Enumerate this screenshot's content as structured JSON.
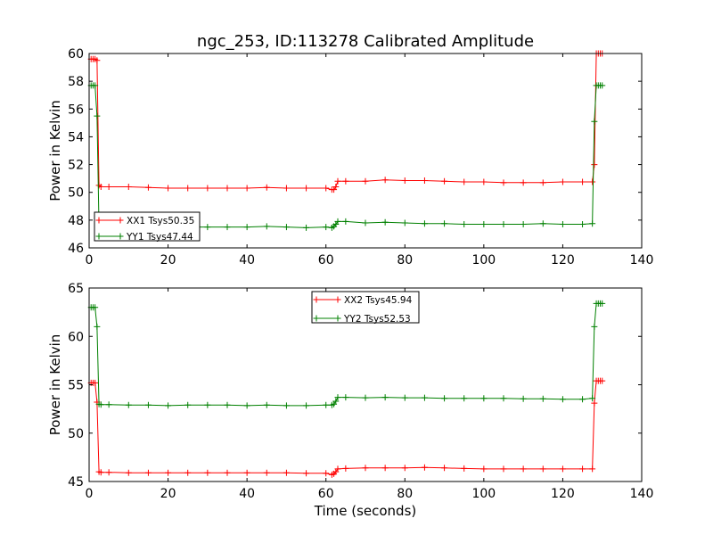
{
  "figure": {
    "title": "ngc_253, ID:113278 Calibrated Amplitude"
  },
  "chart_data": [
    {
      "type": "line",
      "title": "ngc_253, ID:113278 Calibrated Amplitude",
      "xlabel": "",
      "ylabel": "Power in Kelvin",
      "xlim": [
        0,
        140
      ],
      "ylim": [
        46,
        60
      ],
      "xticks": [
        "0",
        "20",
        "40",
        "60",
        "80",
        "100",
        "120",
        "140"
      ],
      "yticks": [
        "46",
        "48",
        "50",
        "52",
        "54",
        "56",
        "58",
        "60"
      ],
      "legend_position": "lower-left",
      "grid": false,
      "series": [
        {
          "name": "XX1 Tsys50.35",
          "color": "#ff0000",
          "marker": "+",
          "x": [
            0.5,
            1,
            1.5,
            2,
            2.5,
            3,
            5,
            10,
            15,
            20,
            25,
            30,
            35,
            40,
            45,
            50,
            55,
            60,
            61.5,
            62,
            62.5,
            63,
            65,
            70,
            75,
            80,
            85,
            90,
            95,
            100,
            105,
            110,
            115,
            120,
            125,
            127.5,
            128,
            128.5,
            129,
            129.5,
            130
          ],
          "y": [
            59.6,
            59.6,
            59.6,
            59.5,
            50.5,
            50.4,
            50.4,
            50.4,
            50.35,
            50.3,
            50.3,
            50.3,
            50.3,
            50.3,
            50.35,
            50.3,
            50.3,
            50.3,
            50.2,
            50.2,
            50.4,
            50.8,
            50.8,
            50.8,
            50.9,
            50.85,
            50.85,
            50.8,
            50.75,
            50.75,
            50.7,
            50.7,
            50.7,
            50.75,
            50.75,
            50.75,
            52,
            60,
            60,
            60,
            60
          ]
        },
        {
          "name": "YY1 Tsys47.44",
          "color": "#008000",
          "marker": "+",
          "x": [
            0.5,
            1,
            1.5,
            2,
            2.5,
            3,
            5,
            10,
            15,
            20,
            25,
            30,
            35,
            40,
            45,
            50,
            55,
            60,
            61.5,
            62,
            62.5,
            63,
            65,
            70,
            75,
            80,
            85,
            90,
            95,
            100,
            105,
            110,
            115,
            120,
            125,
            127.5,
            128,
            128.5,
            129,
            129.5,
            130
          ],
          "y": [
            57.7,
            57.7,
            57.7,
            55.5,
            47.6,
            47.5,
            47.5,
            47.5,
            47.5,
            47.5,
            47.5,
            47.5,
            47.5,
            47.5,
            47.55,
            47.5,
            47.45,
            47.5,
            47.45,
            47.55,
            47.7,
            47.9,
            47.9,
            47.8,
            47.85,
            47.8,
            47.75,
            47.75,
            47.7,
            47.7,
            47.7,
            47.7,
            47.75,
            47.7,
            47.7,
            47.75,
            55.1,
            57.7,
            57.7,
            57.7,
            57.7
          ]
        }
      ]
    },
    {
      "type": "line",
      "title": "",
      "xlabel": "Time (seconds)",
      "ylabel": "Power in Kelvin",
      "xlim": [
        0,
        140
      ],
      "ylim": [
        45,
        65
      ],
      "xticks": [
        "0",
        "20",
        "40",
        "60",
        "80",
        "100",
        "120",
        "140"
      ],
      "yticks": [
        "45",
        "50",
        "55",
        "60",
        "65"
      ],
      "legend_position": "upper-center",
      "grid": false,
      "series": [
        {
          "name": "XX2 Tsys45.94",
          "color": "#ff0000",
          "marker": "+",
          "x": [
            0.5,
            1,
            1.5,
            2,
            2.5,
            3,
            5,
            10,
            15,
            20,
            25,
            30,
            35,
            40,
            45,
            50,
            55,
            60,
            61.5,
            62,
            62.5,
            63,
            65,
            70,
            75,
            80,
            85,
            90,
            95,
            100,
            105,
            110,
            115,
            120,
            125,
            127.5,
            128,
            128.5,
            129,
            129.5,
            130
          ],
          "y": [
            55.2,
            55.2,
            55.2,
            53.2,
            46.0,
            45.95,
            45.95,
            45.9,
            45.9,
            45.9,
            45.9,
            45.9,
            45.9,
            45.9,
            45.9,
            45.9,
            45.85,
            45.85,
            45.7,
            45.8,
            46.0,
            46.3,
            46.35,
            46.4,
            46.4,
            46.4,
            46.45,
            46.4,
            46.35,
            46.3,
            46.3,
            46.3,
            46.3,
            46.3,
            46.3,
            46.3,
            53.1,
            55.4,
            55.4,
            55.4,
            55.4
          ]
        },
        {
          "name": "YY2 Tsys52.53",
          "color": "#008000",
          "marker": "+",
          "x": [
            0.5,
            1,
            1.5,
            2,
            2.5,
            3,
            5,
            10,
            15,
            20,
            25,
            30,
            35,
            40,
            45,
            50,
            55,
            60,
            61.5,
            62,
            62.5,
            63,
            65,
            70,
            75,
            80,
            85,
            90,
            95,
            100,
            105,
            110,
            115,
            120,
            125,
            127.5,
            128,
            128.5,
            129,
            129.5,
            130
          ],
          "y": [
            63.0,
            63.0,
            63.0,
            61.0,
            53.0,
            52.95,
            52.95,
            52.9,
            52.9,
            52.85,
            52.9,
            52.9,
            52.9,
            52.85,
            52.9,
            52.85,
            52.85,
            52.9,
            52.9,
            53.0,
            53.3,
            53.7,
            53.7,
            53.65,
            53.7,
            53.65,
            53.65,
            53.6,
            53.6,
            53.6,
            53.6,
            53.55,
            53.55,
            53.5,
            53.5,
            53.6,
            61.0,
            63.4,
            63.4,
            63.4,
            63.4
          ]
        }
      ]
    }
  ]
}
